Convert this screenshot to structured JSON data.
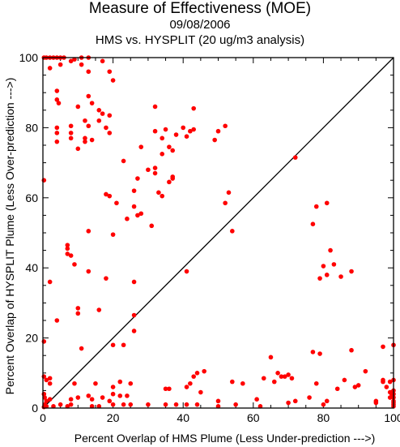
{
  "chart_data": {
    "type": "scatter",
    "title": "Measure of Effectiveness (MOE)",
    "subtitle": "09/08/2006",
    "subtitle2": "HMS vs. HYSPLIT  (20 ug/m3 analysis)",
    "xlabel": "Percent Overlap of HMS Plume (Less Under-prediction --->)",
    "ylabel": "Percent Overlap of HYSPLIT Plume (Less Over-prediction --->)",
    "xlim": [
      0,
      100
    ],
    "ylim": [
      0,
      100
    ],
    "xticks": [
      "0",
      "20",
      "40",
      "60",
      "80",
      "100"
    ],
    "yticks": [
      "0",
      "20",
      "40",
      "60",
      "80",
      "100"
    ],
    "diagonal": true,
    "point_color": "#ff0000",
    "series": [
      {
        "points": [
          [
            0.3,
            100
          ],
          [
            1,
            100
          ],
          [
            2,
            100
          ],
          [
            3,
            100
          ],
          [
            4,
            100
          ],
          [
            5,
            100
          ],
          [
            6,
            100
          ],
          [
            9,
            99.5
          ],
          [
            11,
            100
          ],
          [
            13,
            100
          ],
          [
            2,
            97
          ],
          [
            5,
            98
          ],
          [
            8,
            99
          ],
          [
            11,
            98
          ],
          [
            13,
            96
          ],
          [
            17,
            99
          ],
          [
            19,
            96
          ],
          [
            20,
            93.5
          ],
          [
            4,
            90.5
          ],
          [
            4,
            88
          ],
          [
            4.5,
            87
          ],
          [
            13,
            89
          ],
          [
            14,
            87
          ],
          [
            10,
            86
          ],
          [
            16,
            85
          ],
          [
            17,
            84
          ],
          [
            19,
            83.5
          ],
          [
            16,
            82
          ],
          [
            12,
            82
          ],
          [
            13,
            80.5
          ],
          [
            18,
            80
          ],
          [
            19,
            78.5
          ],
          [
            8,
            80.5
          ],
          [
            4,
            80
          ],
          [
            8,
            78.5
          ],
          [
            8,
            77
          ],
          [
            12,
            77
          ],
          [
            12,
            76
          ],
          [
            14,
            76.5
          ],
          [
            4,
            78.5
          ],
          [
            4,
            76
          ],
          [
            10,
            74
          ],
          [
            23,
            70.5
          ],
          [
            28,
            74.5
          ],
          [
            32,
            86
          ],
          [
            32,
            79
          ],
          [
            35,
            79.5
          ],
          [
            38,
            78
          ],
          [
            34,
            77
          ],
          [
            36,
            74.5
          ],
          [
            37,
            73.5
          ],
          [
            34,
            72.5
          ],
          [
            30,
            68
          ],
          [
            32,
            67
          ],
          [
            32,
            68.5
          ],
          [
            37,
            66
          ],
          [
            37,
            65.5
          ],
          [
            36,
            64.5
          ],
          [
            33,
            61.5
          ],
          [
            34,
            60.5
          ],
          [
            31,
            52
          ],
          [
            40,
            80
          ],
          [
            41,
            77.5
          ],
          [
            42,
            79
          ],
          [
            43,
            85.5
          ],
          [
            43,
            79.5
          ],
          [
            49,
            76.5
          ],
          [
            50,
            79
          ],
          [
            52,
            80.5
          ],
          [
            53,
            61.5
          ],
          [
            52,
            58.5
          ],
          [
            54,
            50.5
          ],
          [
            72,
            71.5
          ],
          [
            0.3,
            65
          ],
          [
            18,
            61
          ],
          [
            19,
            60.5
          ],
          [
            21,
            58.5
          ],
          [
            24,
            54
          ],
          [
            26,
            62
          ],
          [
            27,
            65.5
          ],
          [
            26,
            57.5
          ],
          [
            27,
            55
          ],
          [
            28,
            55.5
          ],
          [
            20,
            49.5
          ],
          [
            13,
            50.5
          ],
          [
            7,
            46.5
          ],
          [
            7,
            45.5
          ],
          [
            7,
            44
          ],
          [
            8,
            43.5
          ],
          [
            9,
            41
          ],
          [
            13,
            39
          ],
          [
            18,
            37
          ],
          [
            26,
            36
          ],
          [
            41,
            39
          ],
          [
            2,
            36
          ],
          [
            4,
            25
          ],
          [
            10,
            27
          ],
          [
            10,
            28.5
          ],
          [
            16,
            28
          ],
          [
            26,
            26.5
          ],
          [
            26,
            22
          ],
          [
            11,
            17
          ],
          [
            20,
            18
          ],
          [
            23,
            18
          ],
          [
            0.3,
            19
          ],
          [
            77,
            52.5
          ],
          [
            78,
            57.5
          ],
          [
            81,
            58.5
          ],
          [
            82,
            45
          ],
          [
            83,
            41
          ],
          [
            80,
            40.5
          ],
          [
            81,
            38
          ],
          [
            79,
            37
          ],
          [
            85,
            37.5
          ],
          [
            88,
            39
          ],
          [
            77,
            16
          ],
          [
            79,
            15.5
          ],
          [
            88,
            16.5
          ],
          [
            97,
            17.5
          ],
          [
            100,
            18
          ],
          [
            0.3,
            9
          ],
          [
            1,
            8
          ],
          [
            2,
            8.5
          ],
          [
            2,
            7
          ],
          [
            9,
            7
          ],
          [
            20,
            6
          ],
          [
            22,
            7.5
          ],
          [
            25,
            7
          ],
          [
            35,
            5.5
          ],
          [
            36,
            5.5
          ],
          [
            41,
            6
          ],
          [
            42,
            7
          ],
          [
            43,
            9
          ],
          [
            44,
            10
          ],
          [
            46,
            10.5
          ],
          [
            45,
            4.5
          ],
          [
            54,
            7.5
          ],
          [
            57,
            7
          ],
          [
            61,
            2.5
          ],
          [
            63,
            8.5
          ],
          [
            65,
            14.5
          ],
          [
            66,
            7.5
          ],
          [
            67,
            10
          ],
          [
            68,
            9
          ],
          [
            69,
            9
          ],
          [
            70,
            9.5
          ],
          [
            71,
            8.5
          ],
          [
            72,
            2
          ],
          [
            76,
            3
          ],
          [
            78,
            7
          ],
          [
            80,
            1
          ],
          [
            84,
            5.5
          ],
          [
            86,
            8
          ],
          [
            89,
            6
          ],
          [
            90,
            6.5
          ],
          [
            92,
            10.5
          ],
          [
            95,
            2
          ],
          [
            97,
            7.5
          ],
          [
            97,
            8
          ],
          [
            98,
            6
          ],
          [
            99,
            7.5
          ],
          [
            100,
            8
          ],
          [
            99.5,
            4
          ],
          [
            100,
            3
          ],
          [
            100,
            2
          ],
          [
            100,
            5
          ],
          [
            100,
            1
          ],
          [
            100,
            1.5
          ],
          [
            99,
            4.5
          ],
          [
            100,
            4
          ],
          [
            99,
            3
          ],
          [
            100,
            0.5
          ],
          [
            0.3,
            0.3
          ],
          [
            0.5,
            1
          ],
          [
            1,
            2
          ],
          [
            0.5,
            3
          ],
          [
            0.3,
            4
          ],
          [
            1,
            0.5
          ],
          [
            3,
            0.5
          ],
          [
            5,
            1
          ],
          [
            8,
            1
          ],
          [
            8,
            2.5
          ],
          [
            10,
            3
          ],
          [
            13,
            3.5
          ],
          [
            14,
            2.5
          ],
          [
            15,
            7
          ],
          [
            17,
            3
          ],
          [
            19,
            2
          ],
          [
            20,
            4
          ],
          [
            20,
            1
          ],
          [
            22,
            3.5
          ],
          [
            23,
            1
          ],
          [
            24,
            3.5
          ],
          [
            25,
            1
          ],
          [
            30,
            1
          ],
          [
            35,
            1
          ],
          [
            38,
            1
          ],
          [
            41,
            1
          ],
          [
            44,
            1
          ],
          [
            50,
            2
          ],
          [
            50,
            0.5
          ],
          [
            55,
            1
          ],
          [
            62,
            0.5
          ],
          [
            70,
            1.5
          ],
          [
            81,
            2
          ],
          [
            95,
            1.5
          ],
          [
            14,
            0.5
          ],
          [
            16,
            0.5
          ],
          [
            7,
            0.5
          ],
          [
            2,
            2.5
          ]
        ]
      }
    ]
  }
}
